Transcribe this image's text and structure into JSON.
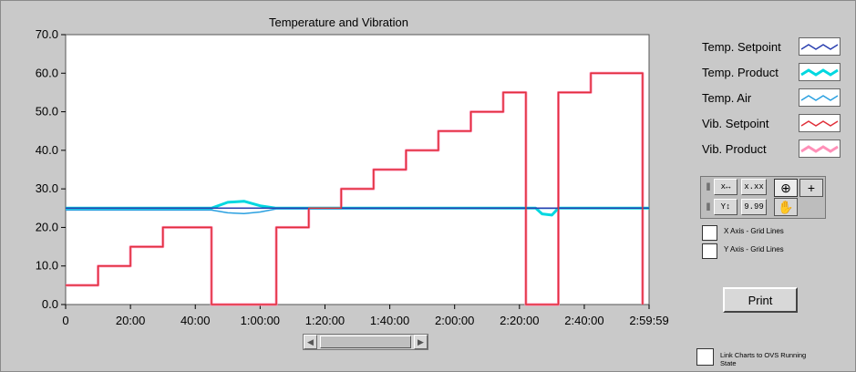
{
  "chart": {
    "title": "Temperature and Vibration"
  },
  "chart_data": {
    "type": "line",
    "title": "Temperature and Vibration",
    "xlabel": "",
    "ylabel": "",
    "xlim": [
      "0",
      "2:59:59"
    ],
    "ylim": [
      0,
      70
    ],
    "x_tick_labels": [
      "0",
      "20:00",
      "40:00",
      "1:00:00",
      "1:20:00",
      "1:40:00",
      "2:00:00",
      "2:20:00",
      "2:40:00",
      "2:59:59"
    ],
    "y_tick_labels": [
      "0.0",
      "10.0",
      "20.0",
      "30.0",
      "40.0",
      "50.0",
      "60.0",
      "70.0"
    ],
    "grid": false,
    "legend_position": "right",
    "series": [
      {
        "name": "Temp. Setpoint",
        "color": "#2a3fb0",
        "points": [
          [
            "0",
            25
          ],
          [
            "2:59:59",
            25
          ]
        ]
      },
      {
        "name": "Temp. Product",
        "color": "#00d8e0",
        "points": [
          [
            "0",
            25
          ],
          [
            "45:00",
            25
          ],
          [
            "50:00",
            26.5
          ],
          [
            "55:00",
            26.8
          ],
          [
            "1:00:00",
            25.6
          ],
          [
            "1:05:00",
            25
          ],
          [
            "2:25:00",
            25
          ],
          [
            "2:27:00",
            23.5
          ],
          [
            "2:30:00",
            23.2
          ],
          [
            "2:32:00",
            25
          ],
          [
            "2:59:59",
            25
          ]
        ]
      },
      {
        "name": "Temp. Air",
        "color": "#2aa0e0",
        "points": [
          [
            "0",
            24.5
          ],
          [
            "45:00",
            24.5
          ],
          [
            "50:00",
            23.8
          ],
          [
            "55:00",
            23.6
          ],
          [
            "1:00:00",
            24.0
          ],
          [
            "1:05:00",
            24.8
          ],
          [
            "2:59:59",
            25
          ]
        ]
      },
      {
        "name": "Vib. Setpoint",
        "color": "#e0303a",
        "points": [
          [
            "0",
            5
          ],
          [
            "10:00",
            5
          ],
          [
            "10:00",
            10
          ],
          [
            "20:00",
            10
          ],
          [
            "20:00",
            15
          ],
          [
            "30:00",
            15
          ],
          [
            "30:00",
            20
          ],
          [
            "45:00",
            20
          ],
          [
            "45:00",
            0
          ],
          [
            "1:05:00",
            0
          ],
          [
            "1:05:00",
            20
          ],
          [
            "1:15:00",
            20
          ],
          [
            "1:15:00",
            25
          ],
          [
            "1:25:00",
            25
          ],
          [
            "1:25:00",
            30
          ],
          [
            "1:35:00",
            30
          ],
          [
            "1:35:00",
            35
          ],
          [
            "1:45:00",
            35
          ],
          [
            "1:45:00",
            40
          ],
          [
            "1:55:00",
            40
          ],
          [
            "1:55:00",
            45
          ],
          [
            "2:05:00",
            45
          ],
          [
            "2:05:00",
            50
          ],
          [
            "2:15:00",
            50
          ],
          [
            "2:15:00",
            55
          ],
          [
            "2:22:00",
            55
          ],
          [
            "2:22:00",
            0
          ],
          [
            "2:32:00",
            0
          ],
          [
            "2:32:00",
            55
          ],
          [
            "2:42:00",
            55
          ],
          [
            "2:42:00",
            60
          ],
          [
            "2:58:00",
            60
          ],
          [
            "2:58:00",
            0
          ]
        ]
      },
      {
        "name": "Vib. Product",
        "color": "#ff90b8",
        "points": [
          [
            "0",
            5
          ],
          [
            "10:00",
            5
          ],
          [
            "10:00",
            10
          ],
          [
            "20:00",
            10
          ],
          [
            "20:00",
            15
          ],
          [
            "30:00",
            15
          ],
          [
            "30:00",
            20
          ],
          [
            "45:00",
            20
          ],
          [
            "45:00",
            0
          ],
          [
            "1:05:00",
            0
          ],
          [
            "1:05:00",
            20
          ],
          [
            "1:15:00",
            20
          ],
          [
            "1:15:00",
            25
          ],
          [
            "1:25:00",
            25
          ],
          [
            "1:25:00",
            30
          ],
          [
            "1:35:00",
            30
          ],
          [
            "1:35:00",
            35
          ],
          [
            "1:45:00",
            35
          ],
          [
            "1:45:00",
            40
          ],
          [
            "1:55:00",
            40
          ],
          [
            "1:55:00",
            45
          ],
          [
            "2:05:00",
            45
          ],
          [
            "2:05:00",
            50
          ],
          [
            "2:15:00",
            50
          ],
          [
            "2:15:00",
            55
          ],
          [
            "2:22:00",
            55
          ],
          [
            "2:22:00",
            0
          ],
          [
            "2:32:00",
            0
          ],
          [
            "2:32:00",
            55
          ],
          [
            "2:42:00",
            55
          ],
          [
            "2:42:00",
            60
          ],
          [
            "2:58:00",
            60
          ],
          [
            "2:58:00",
            0
          ]
        ]
      }
    ]
  },
  "palette": {
    "x_scale_label": "x.xx",
    "y_scale_label": "9.99",
    "x_axis_label": "x",
    "y_axis_label": "Y"
  },
  "options": {
    "x_grid_label": "X Axis - Grid Lines",
    "y_grid_label": "Y Axis - Grid Lines",
    "link_label": "Link Charts to OVS Running State"
  },
  "buttons": {
    "print": "Print"
  },
  "icons": {
    "zoom": "zoom-icon",
    "crosshair": "crosshair-icon",
    "pan": "hand-icon",
    "lock": "lock-icon"
  }
}
